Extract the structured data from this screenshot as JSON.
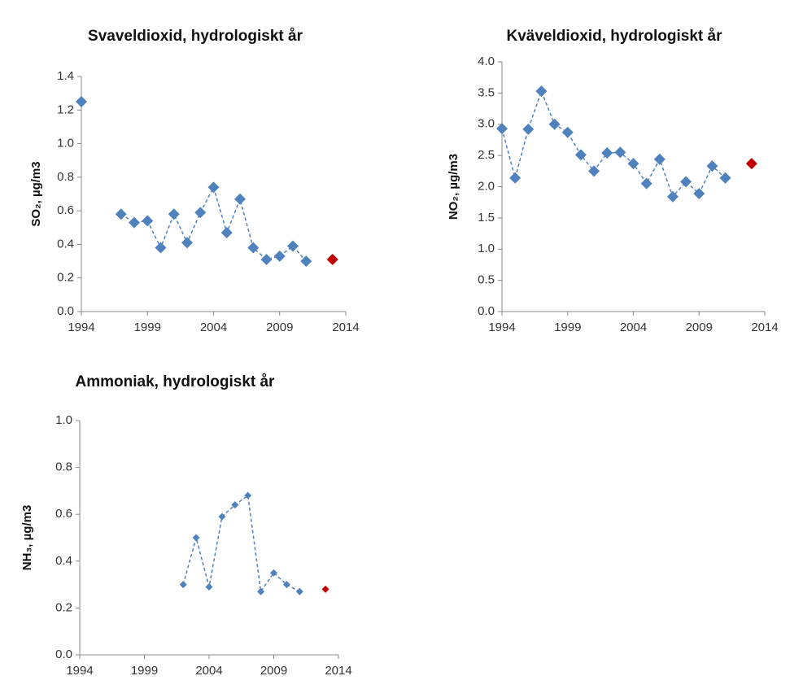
{
  "chart_data": [
    {
      "type": "line",
      "title": "Svaveldioxid, hydrologiskt år",
      "ylabel": "SO₂, µg/m3",
      "x": [
        1994,
        1995,
        1996,
        1997,
        1998,
        1999,
        2000,
        2001,
        2002,
        2003,
        2004,
        2005,
        2006,
        2007,
        2008,
        2009,
        2010,
        2011,
        2012,
        2013
      ],
      "series": [
        {
          "color": "#4f81bd",
          "line_style": "dashed",
          "values": [
            1.25,
            null,
            null,
            0.58,
            0.53,
            0.54,
            0.38,
            0.58,
            0.41,
            0.59,
            0.74,
            0.47,
            0.67,
            0.38,
            0.31,
            0.33,
            0.39,
            0.3,
            null,
            null
          ]
        },
        {
          "color": "#c00000",
          "line_style": "none",
          "values": [
            null,
            null,
            null,
            null,
            null,
            null,
            null,
            null,
            null,
            null,
            null,
            null,
            null,
            null,
            null,
            null,
            null,
            null,
            null,
            0.31
          ]
        }
      ],
      "xlim": [
        1994,
        2014
      ],
      "xticks": [
        1994,
        1999,
        2004,
        2009,
        2014
      ],
      "ylim": [
        0,
        1.4
      ],
      "yticks": [
        {
          "value": 0,
          "label": "0.0"
        },
        0.2,
        0.4,
        0.6,
        0.8,
        {
          "value": 1,
          "label": "1.0"
        },
        1.2,
        1.4
      ]
    },
    {
      "type": "line",
      "title": "Kväveldioxid, hydrologiskt år",
      "ylabel": "NO₂, µg/m3",
      "x": [
        1994,
        1995,
        1996,
        1997,
        1998,
        1999,
        2000,
        2001,
        2002,
        2003,
        2004,
        2005,
        2006,
        2007,
        2008,
        2009,
        2010,
        2011,
        2012,
        2013
      ],
      "series": [
        {
          "color": "#4f81bd",
          "line_style": "dashed",
          "values": [
            2.93,
            2.14,
            2.92,
            3.53,
            3.0,
            2.87,
            2.51,
            2.25,
            2.54,
            2.55,
            2.37,
            2.05,
            2.44,
            1.84,
            2.08,
            1.89,
            2.33,
            2.14,
            null,
            null
          ]
        },
        {
          "color": "#c00000",
          "line_style": "none",
          "values": [
            null,
            null,
            null,
            null,
            null,
            null,
            null,
            null,
            null,
            null,
            null,
            null,
            null,
            null,
            null,
            null,
            null,
            null,
            null,
            2.37
          ]
        }
      ],
      "xlim": [
        1994,
        2014
      ],
      "xticks": [
        1994,
        1999,
        2004,
        2009,
        2014
      ],
      "ylim": [
        0,
        4
      ],
      "yticks": [
        {
          "value": 0,
          "label": "0.0"
        },
        0.5,
        {
          "value": 1,
          "label": "1.0"
        },
        1.5,
        {
          "value": 2,
          "label": "2.0"
        },
        2.5,
        {
          "value": 3,
          "label": "3.0"
        },
        3.5,
        {
          "value": 4,
          "label": "4.0"
        }
      ]
    },
    {
      "type": "line",
      "title": "Ammoniak, hydrologiskt år",
      "ylabel": "NH₃, µg/m3",
      "x": [
        2002,
        2003,
        2004,
        2005,
        2006,
        2007,
        2008,
        2009,
        2010,
        2011,
        2012,
        2013
      ],
      "series": [
        {
          "color": "#4f81bd",
          "line_style": "dashed",
          "values": [
            0.3,
            0.5,
            0.29,
            0.59,
            0.64,
            0.68,
            0.27,
            0.35,
            0.3,
            0.27,
            null,
            null
          ]
        },
        {
          "color": "#c00000",
          "line_style": "none",
          "values": [
            null,
            null,
            null,
            null,
            null,
            null,
            null,
            null,
            null,
            null,
            null,
            0.28
          ]
        }
      ],
      "xlim": [
        1994,
        2014
      ],
      "xticks": [
        1994,
        1999,
        2004,
        2009,
        2014
      ],
      "ylim": [
        0,
        1
      ],
      "yticks": [
        {
          "value": 0,
          "label": "0.0"
        },
        0.2,
        0.4,
        0.6,
        0.8,
        {
          "value": 1,
          "label": "1.0"
        }
      ]
    }
  ]
}
